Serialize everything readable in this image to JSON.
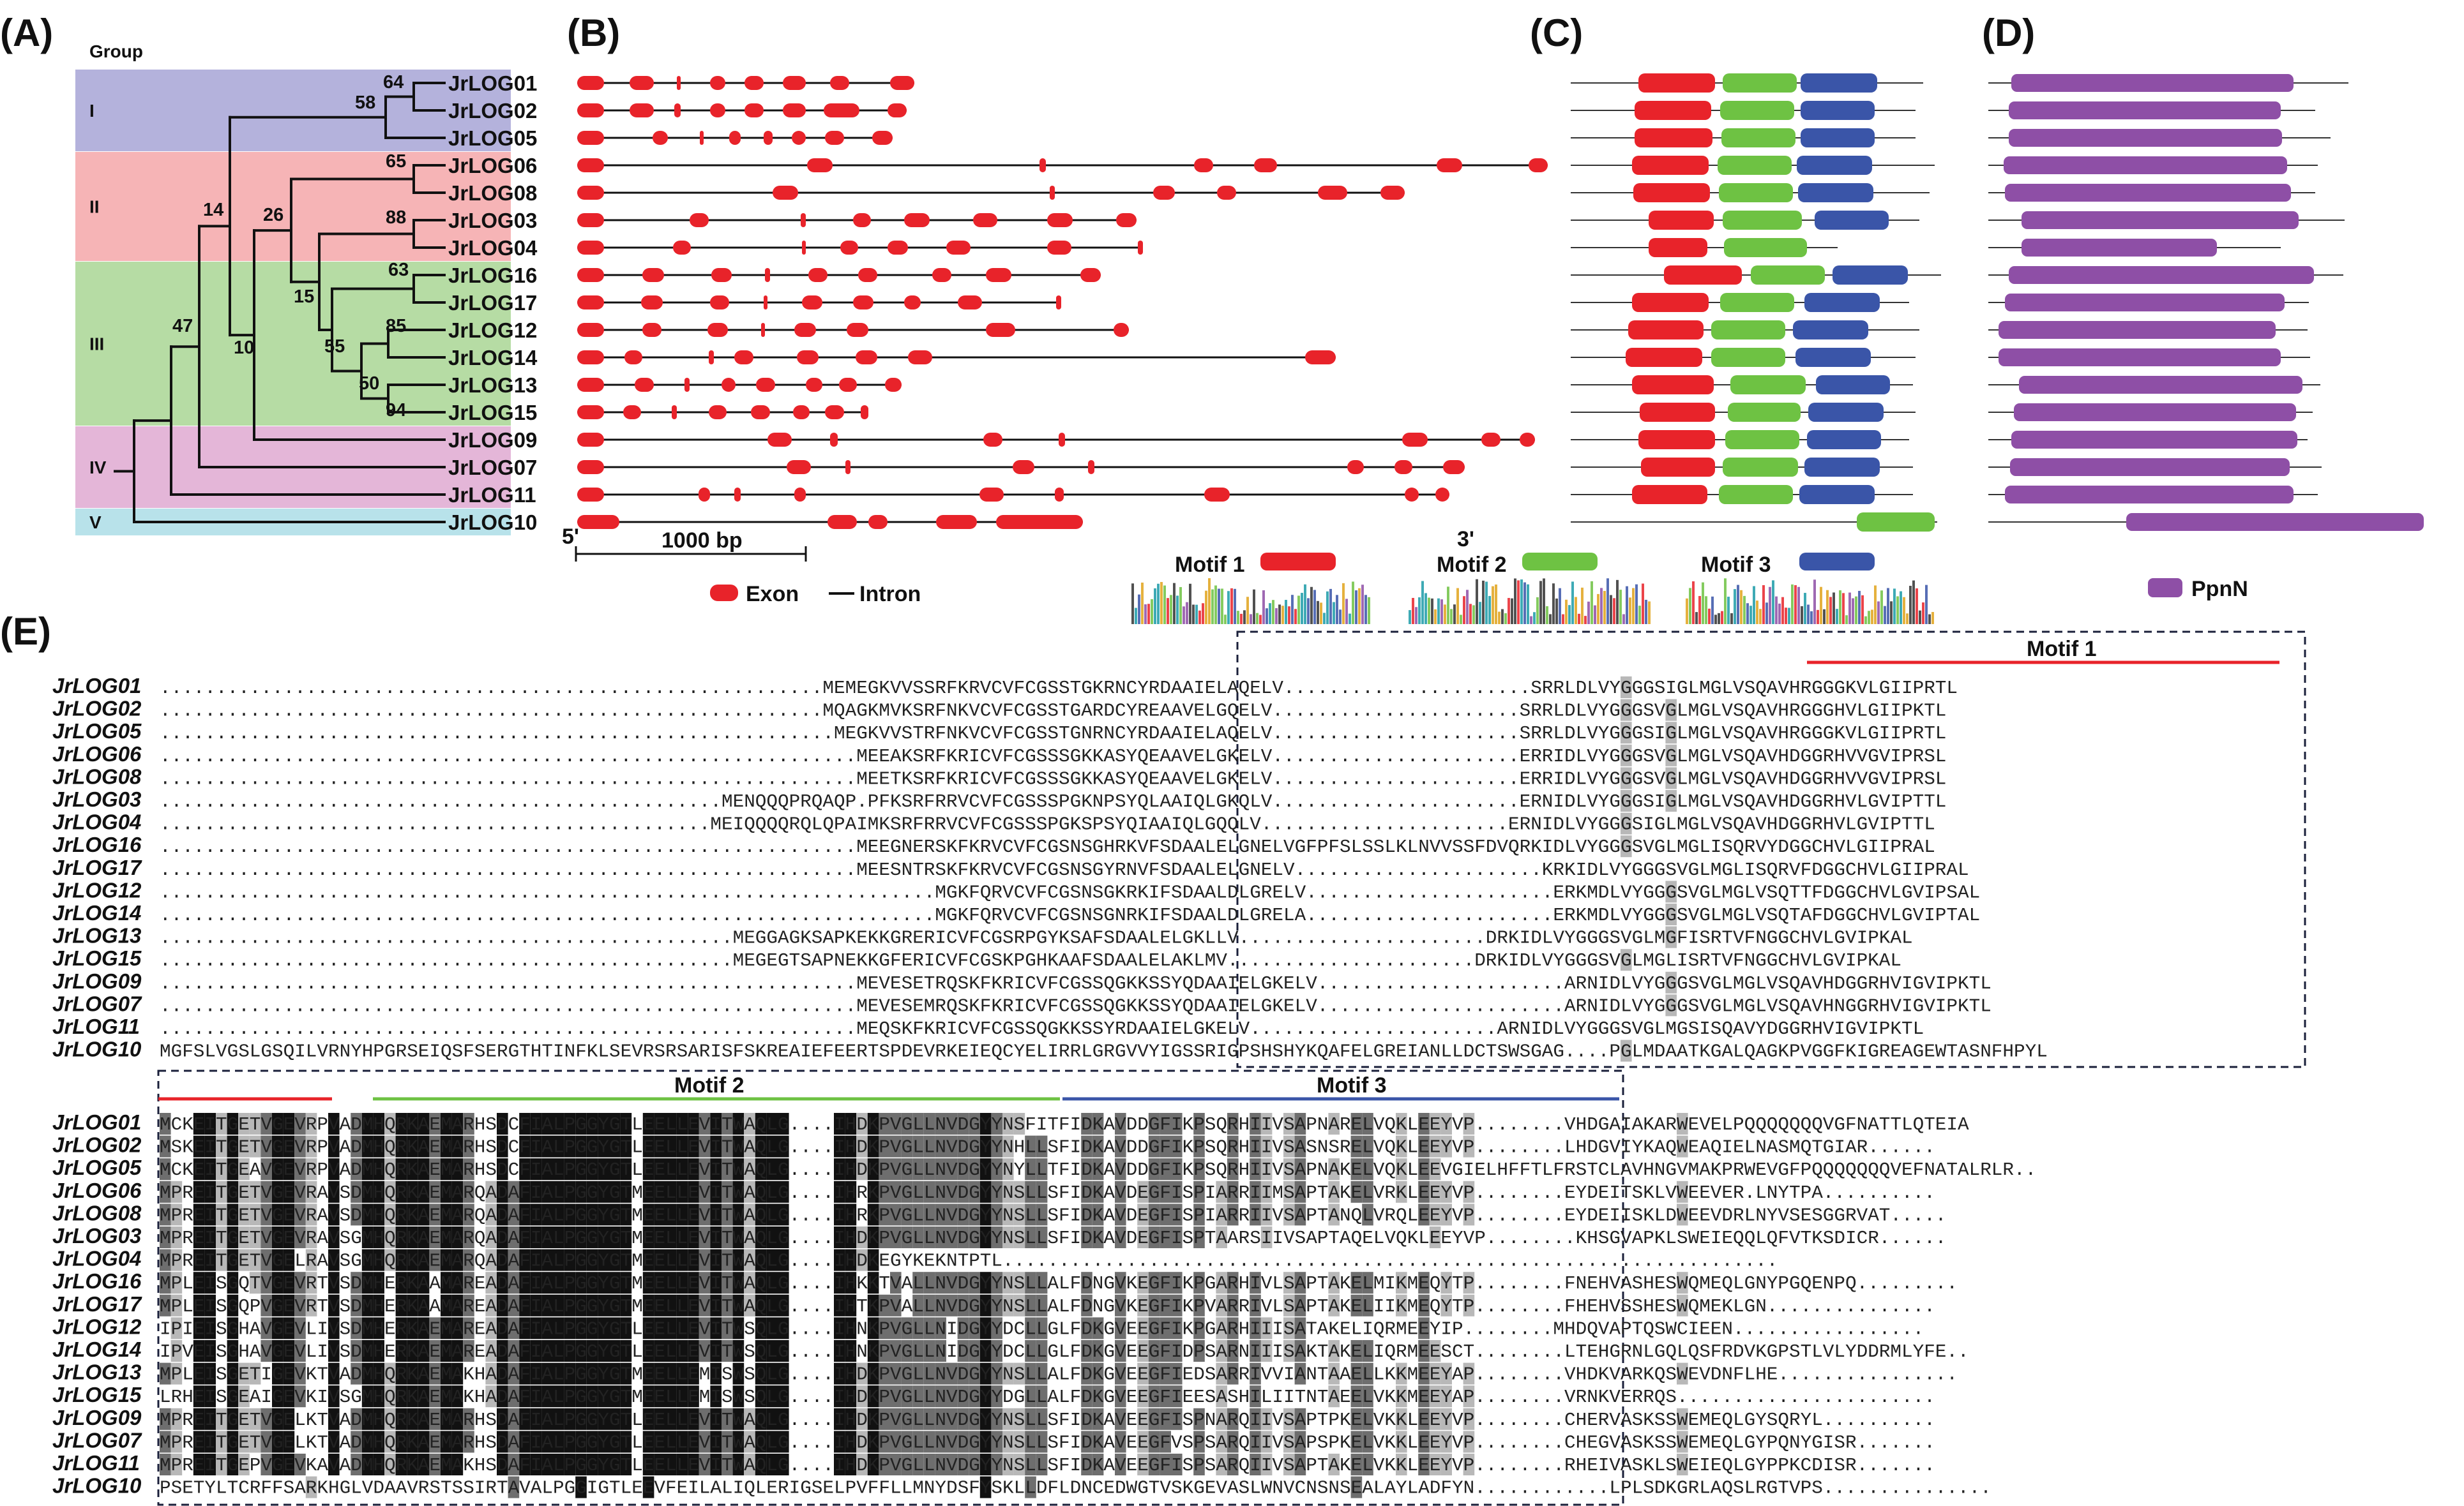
{
  "panels": {
    "A": "(A)",
    "B": "(B)",
    "C": "(C)",
    "D": "(D)",
    "E": "(E)"
  },
  "group_header": "Group",
  "group_names": [
    "I",
    "II",
    "III",
    "IV",
    "V"
  ],
  "group_colors": [
    "#b4b2dc",
    "#f6b4b6",
    "#b6dca4",
    "#e4b6d8",
    "#b8e2ea"
  ],
  "genes": [
    "JrLOG01",
    "JrLOG02",
    "JrLOG05",
    "JrLOG06",
    "JrLOG08",
    "JrLOG03",
    "JrLOG04",
    "JrLOG16",
    "JrLOG17",
    "JrLOG12",
    "JrLOG14",
    "JrLOG13",
    "JrLOG15",
    "JrLOG09",
    "JrLOG07",
    "JrLOG11",
    "JrLOG10"
  ],
  "bootstrap": [
    "64",
    "58",
    "65",
    "88",
    "26",
    "14",
    "63",
    "15",
    "85",
    "55",
    "50",
    "94",
    "10",
    "47"
  ],
  "legend": {
    "exon": "Exon",
    "intron": "Intron",
    "scale": "1000 bp",
    "five_prime": "5'",
    "three_prime": "3'",
    "motif1": "Motif 1",
    "motif2": "Motif 2",
    "motif3": "Motif 3",
    "domain": "PpnN"
  },
  "colors": {
    "exon": "#e8232a",
    "motif1": "#e8232a",
    "motif2": "#6ec243",
    "motif3": "#3a55a8",
    "domain": "#8e4fa6"
  },
  "alignment_headers": {
    "top_motif1": "Motif 1",
    "bottom_motif2": "Motif 2",
    "bottom_motif3": "Motif 3"
  },
  "alignment_top": [
    "...........................................................MEMEGKVVSSRFKRVCVFCGSSTGKRNCYRDAAIELAQELV......................SRRLDLVYGGGSIGLMGLVSQAVHRGGGKVLGIIPRTL",
    "...........................................................MQAGKMVKSRFNKVCVFCGSSTGARDCYREAAVELGQELV......................SRRLDLVYGGGSVGLMGLVSQAVHRGGGHVLGIIPKTL",
    "............................................................MEGKVVSTRFNKVCVFCGSSTGNRNCYRDAAIELAQELV......................SRRLDLVYGGGSIGLMGLVSQAVHRGGGKVLGIIPRTL",
    "..............................................................MEEAKSRFKRICVFCGSSSGKKASYQEAAVELGKELV......................ERRIDLVYGGGSVGLMGLVSQAVHDGGRHVVGVIPRSL",
    "..............................................................MEETKSRFKRICVFCGSSSGKKASYQEAAVELGKELV......................ERRIDLVYGGGSVGLMGLVSQAVHDGGRHVVGVIPRSL",
    "..................................................MENQQQPRQAQP.PFKSRFRRVCVFCGSSSPGKNPSYQLAAIQLGKQLV......................ERNIDLVYGGGSIGLMGLVSQAVHDGGRHVLGVIPTTL",
    ".................................................MEIQQQQRQLQPAIMKSRFRRVCVFCGSSSPGKSPSYQIAAIQLGQQLV......................ERNIDLVYGGGSIGLMGLVSQAVHDGGRHVLGVIPTTL",
    "..............................................................MEEGNERSKFKRVCVFCGSNSGHRKVFSDAALELGNELVGFPFSLSSLKLNVVSSFDVQRKIDLVYGGGSVGLMGLISQRVYDGGCHVLGIIPRAL",
    "..............................................................MEESNTRSKFKRVCVFCGSNSGYRNVFSDAALELGNELV......................KRKIDLVYGGGSVGLMGLISQRVFDGGCHVLGIIPRAL",
    ".....................................................................MGKFQRVCVFCGSNSGKRKIFSDAALDLGRELV......................ERKMDLVYGGGSVGLMGLVSQTTFDGGCHVLGVIPSAL",
    ".....................................................................MGKFQRVCVFCGSNSGNRKIFSDAALDLGRELA......................ERKMDLVYGGGSVGLMGLVSQTAFDGGCHVLGVIPTAL",
    "...................................................MEGGAGKSAPKEKKGRERICVFCGSRPGYKSAFSDAALELGKLLV......................DRKIDLVYGGGSVGLMGFISRTVFNGGCHVLGVIPKAL",
    "...................................................MEGEGTSAPNEKKGFERICVFCGSKPGHKAAFSDAALELAKLMV......................DRKIDLVYGGGSVGLMGLISRTVFNGGCHVLGVIPKAL",
    "..............................................................MEVESETRQSKFKRICVFCGSSQGKKSSYQDAAIELGKELV......................ARNIDLVYGGGSVGLMGLVSQAVHDGGRHVIGVIPKTL",
    "..............................................................MEVESEMRQSKFKRICVFCGSSQGKKSSYQDAAIELGKELV......................ARNIDLVYGGGSVGLMGLVSQAVHNGGRHVIGVIPKTL",
    "..............................................................MEQSKFKRICVFCGSSQGKKSSYRDAAIELGKELV......................ARNIDLVYGGGSVGLMGSISQAVYDGGRHVIGVIPKTL",
    "MGFSLVGSLGSQILVRNYHPGRSEIQSFSERGTHTINFKLSEVRSRSARISFSKREAIEFEERTSPDEVRKEIEQCYELIRRLGRGVVYIGSSRIGPSHSHYKQAFELGREIANLLDCTSWSGAG....PGLMDAATKGALQAGKPVGGFKIGREAGEWTASNFHPYL"
  ],
  "alignment_bottom": [
    "MCKEITGETVGEVRPVADMHQRKAEMARHSDCFIALPGGYGTLEELLEVITWAQLG....IHDKPVGLLNVDGYYNSFITFIDKAVDDGFIKPSQRHIIVSAPNARELVQKLEEYVP........VHDGAIAKARWEVELPQQQQQQQVGFNATTLQTEIA",
    "MSKEITGETVGEVRPVADMHQRKAEMARHSDCFIALPGGYGTLEELLEVITWAQLG....IHDKPVGLLNVDGYYNHLLSFIDKAVDDGFIKPSQRHIIVSASNSRELVQKLEEYVP........LHDGVIYKAQWEAQIELNASMQTGIAR......",
    "MCKEITGEAVGEVRPVADMHQRKAEMARHSDCFIALPGGYGTLEELLEVITWAQLG....IHDKPVGLLNVDGYYNYLLTFIDKAVDDGFIKPSQRHIIVSAPNAKELVQKLEEVGIELHFFTLFRSTCLAVHNGVMAKPRWEVGFPQQQQQQQVEFNATALRLR..",
    "MPREITGETVGEVRAVSDMHQRKAEMARQADAFIALPGGYGTMEELLEVITWAQLG....IHRKPVGLLNVDGYYNSLLSFIDKAVDEGFISPIARRIIMSAPTAKELVRKLEEYVP........EYDEITSKLVWEEVER.LNYTPA..........",
    "MPREITGETVGEVRAVSDMHQRKAEMARQADAFIALPGGYGTMEELLEVITWAQLG....IHRKPVGLLNVDGYYNSLLSFIDKAVDEGFISPIARRIIVSAPTANQLVRQLEEYVP........EYDEIISKLDWEEVDRLNYVSESGGRVAT.....",
    "MPREITGETVGEVRAVSGMHQRKAEMARQADAFIALPGGYGTMEELLEVITWAQLG....IHDKPVGLLNVDGYYNSLLSFIDKAVDEGFISPTAARSIIVSAPTAQELVQKLEEYVP........KHSGVAPKLSWEIEQQLQFVTKSDICR......",
    "MPREITGETVGELRAVSGMHQRKAEMARQADAFIALPGGYGTMEELLEVITWAQLG....IHDKEGYKEKNTPTL.....................................................................",
    "MPLEISGQTVGEVRTVSDMHERKAAMAREADAFIALPGGYGTMEELLEVITWAQLG....IHKKTVALLNVDGYYNSLLALFDNGVKEGFIKPGARHIVLSAPTAKELMIKMEQYTP........FNEHVASHESWQMEQLGNYPGQENPQ.........",
    "MPLEISGQPVGEVRTVSDMHERKAAMAREADAFIALPGGYGTMEELLEVITWAQLG....IHTKPVALLNVDGYYNSLLALFDNGVKEGFIKPVARRIVLSAPTAKELIIKMEQYTP........FHEHVSSHESWQMEKLGN...............",
    "IPIEISGHAVGEVLIVSDMHERKAEMAREADAFIALPGGYGTLEELLEVITWSQLG....IHNKPVGLLNIDGYYDCLLGLFDKGVEEGFIKPGARHIIISATAKELIQRMEEYIP........MHDQVAPTQSWCIEEN.................",
    "IPVEISGHAVGEVLIVSDMHERKAEMAREADAFIALPGGYGTLEELLEVITWSQLG....IHNKPVGLLNIDGYYDCLLGLFDKGVEEGFIDPSARNIIISAKTAKELIQRMEESCT........LTEHGRNLGQLQSFRDVKGPSTLVLYDDRMLYFE..",
    "MPLEISGETIGEVKTVADMHQRKAEMAKHADAFIALPGGYGTMEELLEMISWSQLG....IHDKPVGLLNVDGYYNSLLALFDKGVEEGFIEDSARRIVVIANTAAELLKKMEEYAP........VHDKVARKQSWEVDNFLHE................",
    "LRHEISGEAIGEVKIVSGMHQRKAEMAKHADAFIALPGGYGTMEELLEMISWSQLG....IHDKPVGLLNVDGYYDGLLALFDKGVEEGFIEESASHILIITNTAEELVKKMEEYAP........VRNKVERRQS.......................",
    "MPREITGETVGELKTVADMHQRKAEMARHSDAFIALPGGYGTLEELLEVITWAQLG....IHDKPVGLLNVDGYYNSLLSFIDKAVEEGFISPNARQIIVSAPTPKELVKKLEEYVP........CHERVASKSSWEMEQLGYSQRYL..........",
    "MPREITGETVGELKTVADMHQRKAEMARHSDAFIALPGGYGTLEELLEVITWAQLG....IHDKPVGLLNVDGYYNSLLSFIDKAVEEGFVSPSARQIIVSAPSPKELVKKLEEYVP........CHEGVASKSSWEMEQLGYPQNYGISR.......",
    "MPREITGEPVGEVKAVADMHQRKAEMAKHSDAFIALPGGYGTLEELLEVITWAQLG....IHDKPVGLLNVDGYYNSLLSFIDKAVEEGFISPSARQIIVSAPTAKELVKKLEEYVP........RHEIVASKLSWEIEQLGYPPKCDISR.......",
    "PSETYLTCRFFSARKHGLVDAAVRSTSSIRTAVALPGGIGTLEEVFEILALIQLERIGSELPVFFLLMNYDSFYSKLLDFLDNCEDWGTVSKGEVASLWNVCNSNSEALAYLADFYN............LPLSDKGRLAQSLRGTVPS..............."
  ]
}
